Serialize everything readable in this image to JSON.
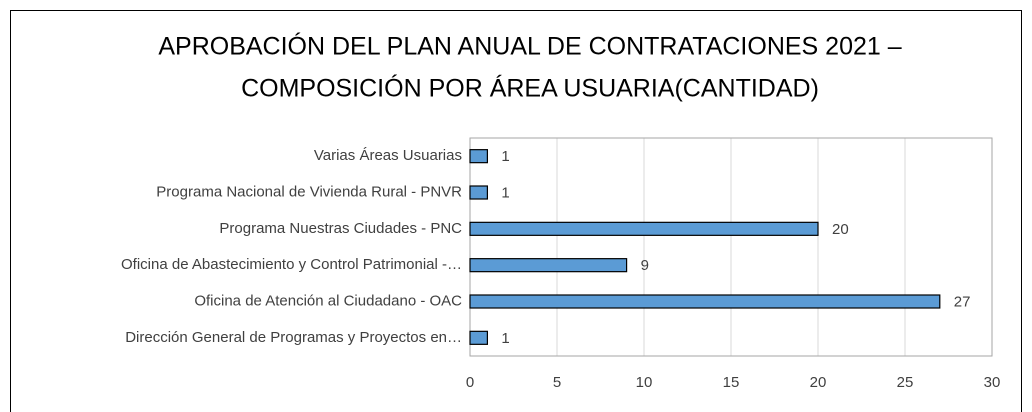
{
  "chart_data": {
    "type": "barh",
    "title_lines": [
      "APROBACIÓN DEL PLAN ANUAL DE CONTRATACIONES 2021 –",
      "COMPOSICIÓN POR ÁREA USUARIA(CANTIDAD)"
    ],
    "categories": [
      "Varias Áreas Usuarias",
      "Programa Nacional de Vivienda Rural - PNVR",
      "Programa Nuestras Ciudades - PNC",
      "Oficina de Abastecimiento y Control Patrimonial -…",
      "Oficina de Atención al Ciudadano - OAC",
      "Dirección General de Programas y Proyectos en…"
    ],
    "values": [
      1,
      1,
      20,
      9,
      27,
      1
    ],
    "color": "#5b9bd5",
    "xlim": [
      0,
      30
    ],
    "xticks": [
      0,
      5,
      10,
      15,
      20,
      25,
      30
    ],
    "grid": true
  }
}
